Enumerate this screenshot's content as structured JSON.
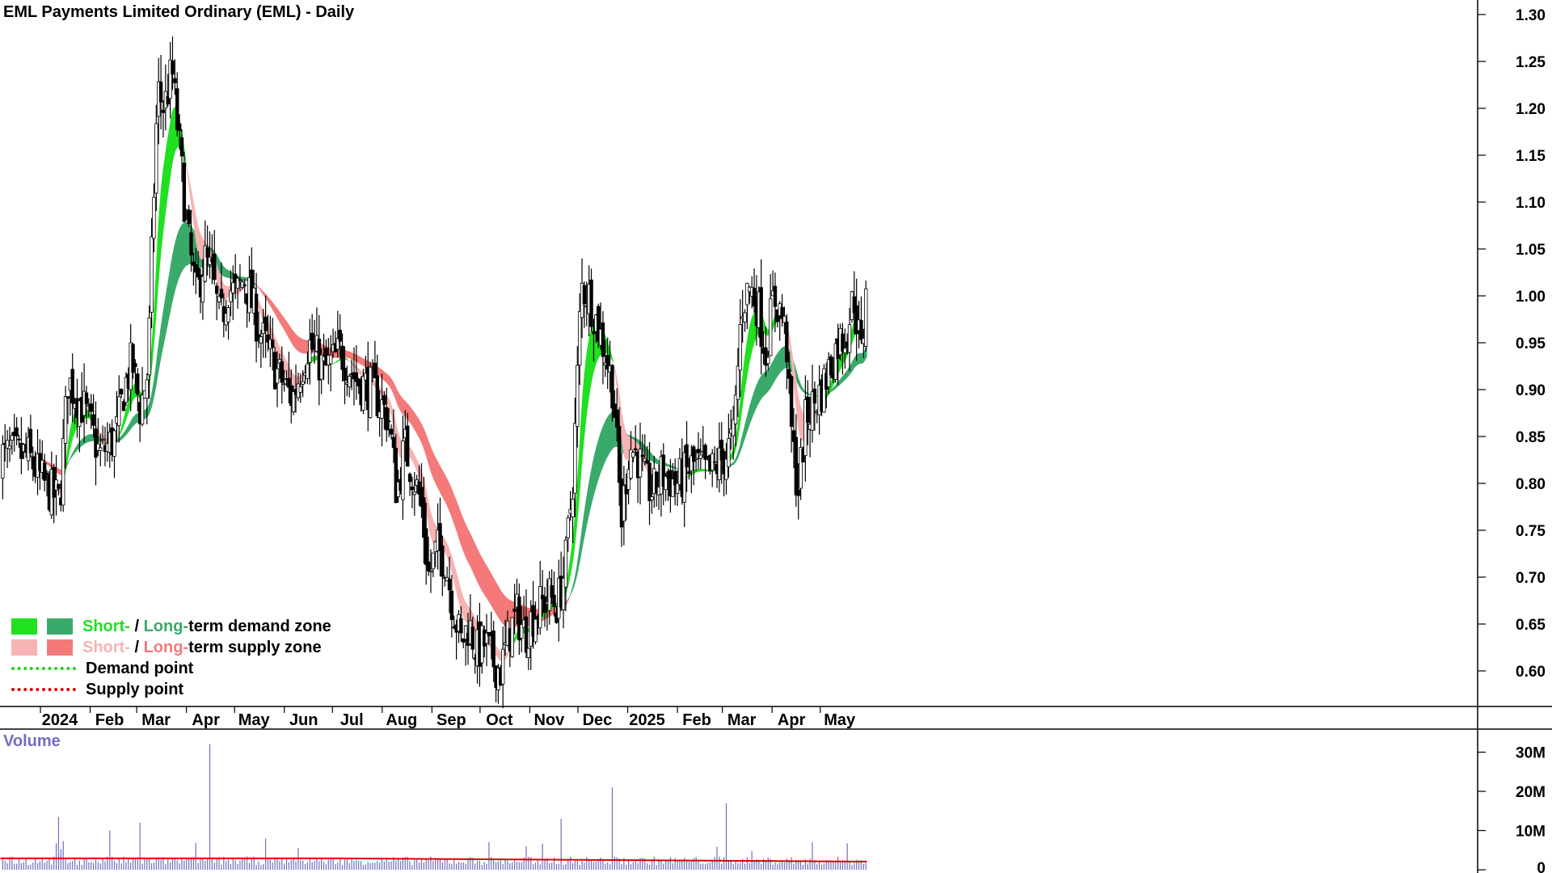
{
  "title": "EML Payments Limited Ordinary (EML) - Daily",
  "volume_label": "Volume",
  "legend": {
    "short_prefix": "Short-",
    "slash": " / ",
    "long_prefix": "Long-",
    "demand_suffix": "term demand zone",
    "supply_suffix": "term supply zone",
    "demand_point": "Demand point",
    "supply_point": "Supply point"
  },
  "colors": {
    "short_demand": "#20e020",
    "long_demand": "#3aaa6a",
    "short_supply": "#f7b3b3",
    "long_supply": "#f47a7a",
    "transition": "#f56a2a",
    "candle": "#000000",
    "volume_bar": "#6f6fc0",
    "volume_avg": "#e00000",
    "demand_point": "#20d020",
    "supply_point": "#e00000"
  },
  "chart_data": {
    "type": "candlestick",
    "title": "EML Payments Limited Ordinary (EML) - Daily",
    "y_axis": {
      "ylim": [
        0.55,
        1.31
      ],
      "ticks": [
        "1.30",
        "1.25",
        "1.20",
        "1.15",
        "1.10",
        "1.05",
        "1.00",
        "0.95",
        "0.90",
        "0.85",
        "0.80",
        "0.75",
        "0.70",
        "0.65",
        "0.60"
      ]
    },
    "x_axis": {
      "labels": [
        "2024",
        "Feb",
        "Mar",
        "Apr",
        "May",
        "Jun",
        "Jul",
        "Aug",
        "Sep",
        "Oct",
        "Nov",
        "Dec",
        "2025",
        "Feb",
        "Mar",
        "Apr",
        "May"
      ],
      "label_days": [
        0,
        31,
        60,
        91,
        121,
        152,
        182,
        213,
        244,
        274,
        305,
        335,
        366,
        397,
        425,
        456,
        486
      ]
    },
    "price_path": {
      "days": [
        -15,
        -5,
        5,
        10,
        20,
        30,
        40,
        45,
        50,
        55,
        60,
        63,
        66,
        70,
        75,
        80,
        85,
        90,
        95,
        100,
        105,
        110,
        115,
        120,
        130,
        140,
        150,
        160,
        170,
        180,
        190,
        200,
        210,
        215,
        220,
        225,
        230,
        235,
        240,
        245,
        250,
        255,
        260,
        265,
        270,
        275,
        280,
        285,
        290,
        295,
        300,
        305,
        310,
        315,
        320,
        325,
        330,
        335,
        340,
        345,
        350,
        355,
        360,
        365,
        370,
        375,
        380,
        390,
        400,
        410,
        420,
        425,
        430,
        435,
        440,
        445,
        450,
        455,
        458,
        460,
        465,
        470,
        480,
        490,
        495,
        500,
        505,
        508
      ],
      "close": [
        0.83,
        0.8,
        0.78,
        0.91,
        0.88,
        0.83,
        0.85,
        0.9,
        0.93,
        0.88,
        0.92,
        1.08,
        1.22,
        1.2,
        1.24,
        1.15,
        1.06,
        1.0,
        1.04,
        1.02,
        0.97,
        1.01,
        1.0,
        1.02,
        0.96,
        0.92,
        0.89,
        0.95,
        0.92,
        0.94,
        0.91,
        0.9,
        0.87,
        0.79,
        0.84,
        0.81,
        0.78,
        0.7,
        0.73,
        0.72,
        0.67,
        0.63,
        0.65,
        0.62,
        0.63,
        0.61,
        0.6,
        0.64,
        0.66,
        0.64,
        0.66,
        0.67,
        0.68,
        0.67,
        0.71,
        0.81,
        1.01,
        1.0,
        0.97,
        0.94,
        0.9,
        0.76,
        0.84,
        0.83,
        0.8,
        0.79,
        0.81,
        0.8,
        0.82,
        0.81,
        0.83,
        0.85,
        0.99,
        1.01,
        0.99,
        0.94,
        1.0,
        0.98,
        0.95,
        0.87,
        0.79,
        0.87,
        0.9,
        0.95,
        0.96,
        1.0,
        0.93,
        1.04
      ]
    },
    "volume_axis": {
      "ylim": [
        0,
        33000000
      ],
      "ticks": [
        "30M",
        "20M",
        "10M",
        "0"
      ]
    }
  }
}
